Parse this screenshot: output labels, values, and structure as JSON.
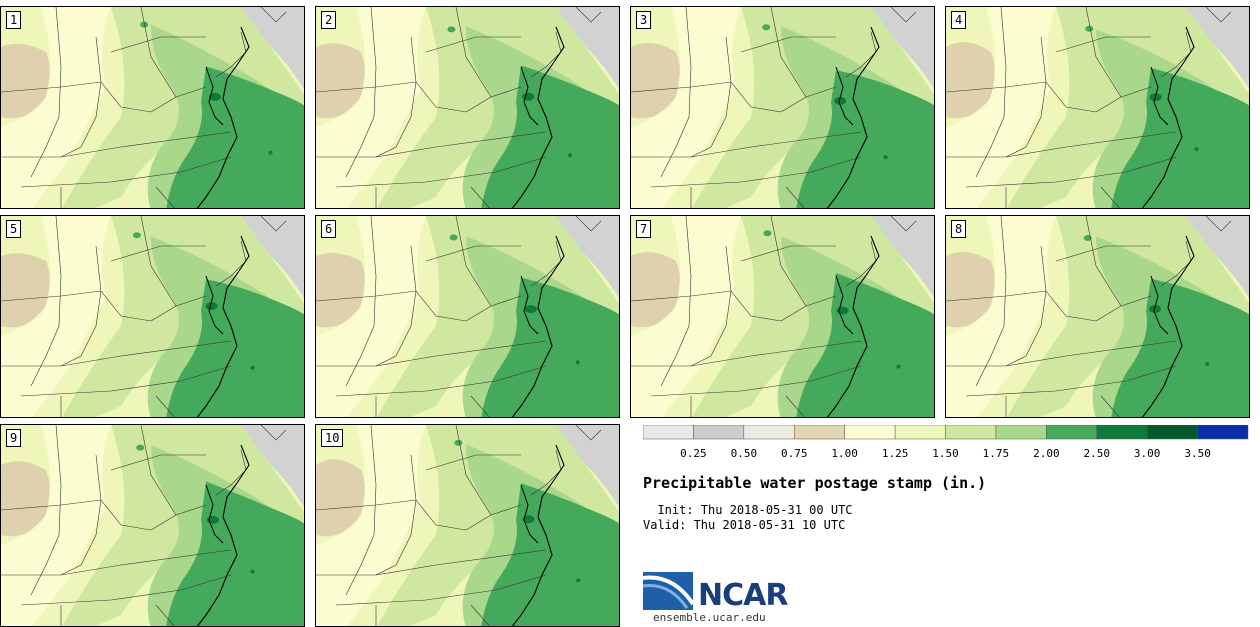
{
  "title": "Precipitable water postage stamp (in.)",
  "init_line": "  Init: Thu 2018-05-31 00 UTC",
  "valid_line": "Valid: Thu 2018-05-31 10 UTC",
  "logo_text": "NCAR",
  "site": "ensemble.ucar.edu",
  "members": [
    "1",
    "2",
    "3",
    "4",
    "5",
    "6",
    "7",
    "8",
    "9",
    "10"
  ],
  "colorbar": {
    "ticks": [
      "0.25",
      "0.50",
      "0.75",
      "1.00",
      "1.25",
      "1.50",
      "1.75",
      "2.00",
      "2.50",
      "3.00",
      "3.50"
    ],
    "colors": [
      "#e8e8e8",
      "#cdcdcd",
      "#ecebe2",
      "#e3d5b2",
      "#fdfdd3",
      "#eef7b9",
      "#cfe79e",
      "#a9d78b",
      "#45a95b",
      "#0e7a3a",
      "#02592b",
      "#0a2ea8"
    ]
  },
  "map_colors": {
    "ocean_gray": "#d2d2d2",
    "tan": "#dfd1ad",
    "cream": "#fdfdd3",
    "light": "#eef7b9",
    "lightgreen": "#cfe79e",
    "midgreen": "#a9d78b",
    "green": "#45a95b",
    "darkgreen": "#0e7a3a"
  }
}
